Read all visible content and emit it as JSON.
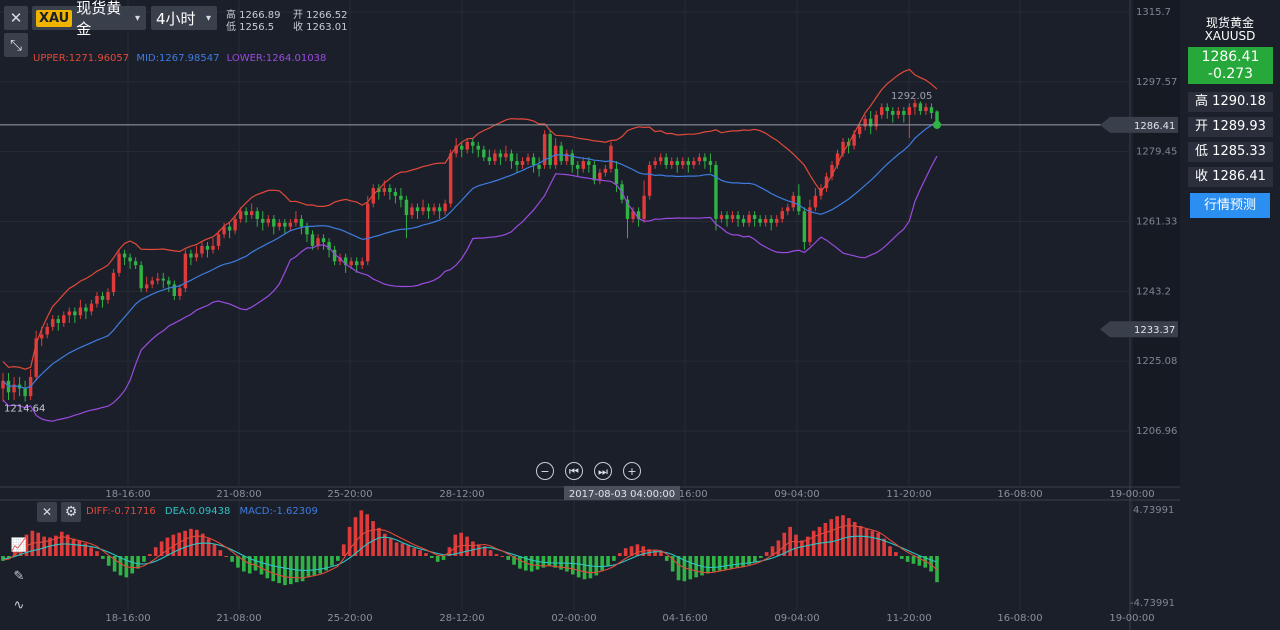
{
  "toolbar": {
    "close_label": "✕",
    "collapse_label": "⤡",
    "symbol_tag": "XAU",
    "symbol_name": "现货黄金",
    "period": "4小时",
    "caret": "▾"
  },
  "ohlc_header": {
    "high": "高 1266.89",
    "low": "低 1256.5",
    "open": "开 1266.52",
    "close": "收 1263.01"
  },
  "boll_legend": {
    "upper": "UPPER:1271.96057",
    "mid": "MID:1267.98547",
    "lower": "LOWER:1264.01038"
  },
  "macd_legend": {
    "diff": "DIFF:-0.71716",
    "dea": "DEA:0.09438",
    "macd": "MACD:-1.62309"
  },
  "right_panel": {
    "name": "现货黄金",
    "code": "XAUUSD",
    "price": "1286.41",
    "change": "-0.273",
    "high": "高 1290.18",
    "open": "开 1289.93",
    "low": "低 1285.33",
    "close": "收 1286.41",
    "forecast": "行情预测"
  },
  "nav_buttons": [
    "−",
    "⏮",
    "⏭",
    "+"
  ],
  "colors": {
    "up": "#e03b3b",
    "down": "#2fb344",
    "upper": "#e04a3a",
    "mid": "#3e7ce0",
    "lower": "#9a4be0",
    "dea": "#2ec4c4",
    "diff": "#e04a3a",
    "background": "#1b1f29",
    "grid": "#262b36",
    "accent_green": "#26a83a",
    "accent_blue": "#2a8ff0"
  },
  "chart_data": [
    {
      "type": "candlestick",
      "price_ticks": [
        "1315.7",
        "1297.57",
        "1279.45",
        "1261.33",
        "1243.2",
        "1225.08",
        "1206.96"
      ],
      "price_tick_values": [
        1315.7,
        1297.57,
        1279.45,
        1261.33,
        1243.2,
        1225.08,
        1206.96
      ],
      "x_ticks": [
        "18-16:00",
        "21-08:00",
        "25-20:00",
        "28-12:00",
        "02-00:00",
        "04-16:00",
        "09-04:00",
        "11-20:00",
        "16-08:00",
        "19-00:00"
      ],
      "current_price_label": "1286.41",
      "current_price": 1286.41,
      "marker_price_label": "1233.37",
      "marker_price": 1233.37,
      "high_annotation": "1292.05",
      "high_value": 1292.05,
      "low_annotation": "1214.64",
      "low_value": 1214.64,
      "crosshair_time": "2017-08-03 04:00:00",
      "candles": [
        [
          1218,
          1220,
          1214.6,
          1222
        ],
        [
          1220,
          1217,
          1215,
          1222
        ],
        [
          1217,
          1219,
          1215,
          1221
        ],
        [
          1219,
          1218,
          1216,
          1221
        ],
        [
          1218,
          1216,
          1214.6,
          1220
        ],
        [
          1216,
          1221,
          1215,
          1223
        ],
        [
          1221,
          1231,
          1220,
          1233
        ],
        [
          1231,
          1232,
          1229,
          1234
        ],
        [
          1232,
          1234,
          1231,
          1235
        ],
        [
          1234,
          1236,
          1233,
          1237
        ],
        [
          1236,
          1235,
          1233,
          1237
        ],
        [
          1235,
          1237,
          1234,
          1238
        ],
        [
          1237,
          1238,
          1235,
          1239
        ],
        [
          1238,
          1237,
          1235,
          1239
        ],
        [
          1237,
          1239,
          1236,
          1241
        ],
        [
          1239,
          1238,
          1236,
          1240
        ],
        [
          1238,
          1240,
          1237,
          1241
        ],
        [
          1240,
          1242,
          1239,
          1243
        ],
        [
          1242,
          1241,
          1239,
          1243
        ],
        [
          1241,
          1243,
          1240,
          1244
        ],
        [
          1243,
          1248,
          1242,
          1249
        ],
        [
          1248,
          1253,
          1247,
          1254
        ],
        [
          1253,
          1252,
          1250,
          1254
        ],
        [
          1252,
          1251,
          1249,
          1253
        ],
        [
          1251,
          1250,
          1249,
          1252
        ],
        [
          1250,
          1244,
          1243,
          1251
        ],
        [
          1244,
          1245,
          1243,
          1247
        ],
        [
          1245,
          1246,
          1244,
          1247
        ],
        [
          1246,
          1246.5,
          1245,
          1248
        ],
        [
          1246.5,
          1246,
          1244,
          1248
        ],
        [
          1246,
          1245,
          1243,
          1247
        ],
        [
          1245,
          1242,
          1241,
          1246
        ],
        [
          1242,
          1244,
          1241,
          1245
        ],
        [
          1244,
          1253,
          1243,
          1254
        ],
        [
          1253,
          1252,
          1250,
          1254
        ],
        [
          1252,
          1253,
          1251,
          1255
        ],
        [
          1253,
          1255,
          1252,
          1256
        ],
        [
          1255,
          1254,
          1252,
          1256
        ],
        [
          1254,
          1255,
          1253,
          1257
        ],
        [
          1255,
          1258,
          1254,
          1259
        ],
        [
          1258,
          1260,
          1257,
          1261
        ],
        [
          1260,
          1259,
          1257,
          1261
        ],
        [
          1259,
          1262,
          1258,
          1263
        ],
        [
          1262,
          1264,
          1261,
          1265
        ],
        [
          1264,
          1263,
          1261,
          1265
        ],
        [
          1263,
          1264,
          1262,
          1266
        ],
        [
          1264,
          1262,
          1260,
          1265
        ],
        [
          1262,
          1261,
          1259,
          1264
        ],
        [
          1261,
          1262,
          1260,
          1263
        ],
        [
          1262,
          1260,
          1258,
          1263
        ],
        [
          1260,
          1261,
          1259,
          1262
        ],
        [
          1261,
          1260,
          1258,
          1262
        ],
        [
          1260,
          1261,
          1259,
          1262
        ],
        [
          1261,
          1262,
          1260,
          1264
        ],
        [
          1262,
          1260,
          1258,
          1263
        ],
        [
          1260,
          1258,
          1256,
          1261
        ],
        [
          1258,
          1255,
          1254,
          1259
        ],
        [
          1255,
          1257,
          1254,
          1258
        ],
        [
          1257,
          1256,
          1254,
          1258
        ],
        [
          1256,
          1254,
          1252,
          1257
        ],
        [
          1254,
          1251,
          1250,
          1255
        ],
        [
          1251,
          1252,
          1250,
          1253
        ],
        [
          1252,
          1250,
          1248,
          1253
        ],
        [
          1250,
          1251,
          1249,
          1252
        ],
        [
          1251,
          1250,
          1248,
          1252
        ],
        [
          1250,
          1251,
          1249,
          1252
        ],
        [
          1251,
          1266,
          1250,
          1268
        ],
        [
          1266,
          1270,
          1265,
          1271
        ],
        [
          1270,
          1269,
          1267,
          1271
        ],
        [
          1269,
          1270,
          1268,
          1272
        ],
        [
          1270,
          1269,
          1267,
          1271
        ],
        [
          1269,
          1268,
          1266,
          1270
        ],
        [
          1268,
          1267,
          1265,
          1270
        ],
        [
          1267,
          1263,
          1257,
          1268
        ],
        [
          1263,
          1265,
          1262,
          1266
        ],
        [
          1265,
          1264,
          1262,
          1266
        ],
        [
          1264,
          1265,
          1263,
          1267
        ],
        [
          1265,
          1264,
          1262,
          1266
        ],
        [
          1264,
          1265,
          1263,
          1266
        ],
        [
          1265,
          1264,
          1262,
          1266
        ],
        [
          1264,
          1266,
          1263,
          1267
        ],
        [
          1266,
          1279,
          1265,
          1280
        ],
        [
          1279,
          1281,
          1278,
          1283
        ],
        [
          1281,
          1280,
          1278,
          1282
        ],
        [
          1280,
          1282,
          1279,
          1283
        ],
        [
          1282,
          1281,
          1279,
          1283
        ],
        [
          1281,
          1280,
          1278,
          1282
        ],
        [
          1280,
          1278,
          1277,
          1281
        ],
        [
          1278,
          1277,
          1276,
          1280
        ],
        [
          1277,
          1279,
          1276,
          1280
        ],
        [
          1279,
          1278,
          1276,
          1280
        ],
        [
          1278,
          1279,
          1277,
          1281
        ],
        [
          1279,
          1277,
          1275,
          1280
        ],
        [
          1277,
          1276,
          1274,
          1279
        ],
        [
          1276,
          1277,
          1275,
          1278
        ],
        [
          1277,
          1278,
          1276,
          1279
        ],
        [
          1278,
          1276,
          1274,
          1279
        ],
        [
          1276,
          1275,
          1273,
          1278
        ],
        [
          1276,
          1284,
          1275,
          1285
        ],
        [
          1284,
          1276,
          1275,
          1285
        ],
        [
          1276,
          1281,
          1275,
          1283
        ],
        [
          1281,
          1277,
          1276,
          1282
        ],
        [
          1277,
          1279,
          1276,
          1280
        ],
        [
          1279,
          1276,
          1274,
          1280
        ],
        [
          1276,
          1275,
          1273,
          1277
        ],
        [
          1275,
          1277,
          1274,
          1278
        ],
        [
          1277,
          1276,
          1274,
          1278
        ],
        [
          1276,
          1272,
          1271,
          1277
        ],
        [
          1272,
          1274,
          1271,
          1275
        ],
        [
          1274,
          1275,
          1273,
          1276
        ],
        [
          1275,
          1281,
          1274,
          1282
        ],
        [
          1275,
          1271,
          1269,
          1277
        ],
        [
          1271,
          1267,
          1266,
          1272
        ],
        [
          1267,
          1262,
          1257,
          1268
        ],
        [
          1262,
          1264,
          1261,
          1265
        ],
        [
          1264,
          1262,
          1260,
          1265
        ],
        [
          1262,
          1268,
          1261,
          1272
        ],
        [
          1268,
          1276,
          1267,
          1277
        ],
        [
          1276,
          1277,
          1275,
          1278
        ],
        [
          1277,
          1278,
          1276,
          1279
        ],
        [
          1278,
          1276,
          1275,
          1279
        ],
        [
          1276,
          1277,
          1275,
          1278
        ],
        [
          1277,
          1276,
          1274,
          1278
        ],
        [
          1276,
          1277,
          1275,
          1278
        ],
        [
          1277,
          1276,
          1274,
          1278
        ],
        [
          1276,
          1277,
          1275,
          1278
        ],
        [
          1277,
          1278,
          1276,
          1279
        ],
        [
          1278,
          1277,
          1275,
          1279
        ],
        [
          1277,
          1276,
          1274,
          1279
        ],
        [
          1276,
          1262,
          1259,
          1277
        ],
        [
          1262,
          1263,
          1261,
          1264
        ],
        [
          1263,
          1262,
          1260,
          1264
        ],
        [
          1262,
          1263,
          1261,
          1264
        ],
        [
          1263,
          1262,
          1260,
          1264
        ],
        [
          1262,
          1261,
          1260,
          1263
        ],
        [
          1261,
          1263,
          1260,
          1264
        ],
        [
          1263,
          1262,
          1260,
          1264
        ],
        [
          1262,
          1261,
          1260,
          1263
        ],
        [
          1261,
          1262,
          1260,
          1263
        ],
        [
          1262,
          1261,
          1259,
          1263
        ],
        [
          1261,
          1262,
          1260,
          1263
        ],
        [
          1262,
          1264,
          1261,
          1265
        ],
        [
          1264,
          1265,
          1263,
          1266
        ],
        [
          1265,
          1268,
          1264,
          1269
        ],
        [
          1268,
          1264,
          1263,
          1271
        ],
        [
          1264,
          1256,
          1254,
          1265
        ],
        [
          1256,
          1265,
          1255,
          1267
        ],
        [
          1265,
          1268,
          1264,
          1270
        ],
        [
          1268,
          1270,
          1267,
          1271
        ],
        [
          1270,
          1273,
          1269,
          1274
        ],
        [
          1273,
          1276,
          1272,
          1277
        ],
        [
          1276,
          1279,
          1275,
          1280
        ],
        [
          1279,
          1282,
          1278,
          1283
        ],
        [
          1282,
          1281,
          1279,
          1283
        ],
        [
          1281,
          1284,
          1280,
          1285
        ],
        [
          1284,
          1286,
          1283,
          1287
        ],
        [
          1286,
          1288,
          1285,
          1289
        ],
        [
          1288,
          1286,
          1284,
          1290
        ],
        [
          1286,
          1289,
          1285,
          1290
        ],
        [
          1289,
          1291,
          1288,
          1292
        ],
        [
          1291,
          1290,
          1288,
          1292
        ],
        [
          1290,
          1289,
          1287,
          1291
        ],
        [
          1289,
          1290,
          1288,
          1291
        ],
        [
          1290,
          1289,
          1287,
          1291
        ],
        [
          1289,
          1291,
          1283,
          1292
        ],
        [
          1291,
          1292.05,
          1289,
          1293
        ],
        [
          1292,
          1290,
          1289,
          1292.5
        ],
        [
          1290,
          1291,
          1289,
          1292
        ],
        [
          1291,
          1289.5,
          1288,
          1292
        ],
        [
          1289.9,
          1286.4,
          1285.3,
          1290.2
        ]
      ]
    },
    {
      "type": "bar",
      "name": "MACD",
      "y_ticks": [
        "4.73991",
        "-4.73991"
      ],
      "ylim": [
        -4.73991,
        4.73991
      ],
      "x_ticks": [
        "18-16:00",
        "21-08:00",
        "25-20:00",
        "28-12:00",
        "02-00:00",
        "04-16:00",
        "09-04:00",
        "11-20:00",
        "16-08:00",
        "19-00:00"
      ],
      "values": [
        -0.5,
        -0.3,
        0.5,
        1.5,
        2.2,
        2.6,
        2.4,
        2.0,
        1.9,
        2.1,
        2.5,
        2.2,
        1.8,
        1.6,
        1.3,
        0.9,
        0.5,
        -0.3,
        -1.0,
        -1.6,
        -2.0,
        -2.2,
        -1.8,
        -1.3,
        -0.6,
        0.2,
        0.9,
        1.5,
        1.9,
        2.2,
        2.4,
        2.6,
        2.8,
        2.7,
        2.3,
        1.8,
        1.2,
        0.6,
        0.0,
        -0.6,
        -1.2,
        -1.6,
        -1.8,
        -1.5,
        -1.9,
        -2.3,
        -2.6,
        -2.8,
        -3.0,
        -2.9,
        -2.7,
        -2.6,
        -2.2,
        -2.0,
        -1.8,
        -1.5,
        -1.0,
        -0.5,
        1.2,
        3.0,
        4.0,
        4.7,
        4.3,
        3.6,
        2.9,
        2.3,
        1.8,
        1.4,
        1.3,
        1.1,
        0.8,
        0.6,
        0.3,
        -0.2,
        -0.6,
        -0.4,
        0.9,
        2.2,
        2.4,
        2.0,
        1.5,
        1.2,
        1.0,
        0.6,
        0.2,
        0.0,
        -0.4,
        -0.9,
        -1.3,
        -1.5,
        -1.6,
        -1.4,
        -1.2,
        -1.0,
        -1.2,
        -1.4,
        -1.6,
        -1.9,
        -2.2,
        -2.4,
        -2.3,
        -2.0,
        -1.5,
        -1.0,
        -0.5,
        0.3,
        0.8,
        1.0,
        1.2,
        1.0,
        0.7,
        0.6,
        0.4,
        -0.5,
        -1.6,
        -2.5,
        -2.6,
        -2.4,
        -2.2,
        -2.0,
        -1.8,
        -1.6,
        -1.5,
        -1.4,
        -1.3,
        -1.2,
        -1.1,
        -0.9,
        -0.6,
        -0.2,
        0.4,
        1.0,
        1.6,
        2.4,
        3.0,
        2.2,
        1.6,
        2.0,
        2.6,
        3.0,
        3.4,
        3.8,
        4.1,
        4.2,
        3.9,
        3.5,
        3.1,
        2.8,
        2.6,
        2.4,
        1.8,
        1.0,
        0.4,
        -0.3,
        -0.6,
        -0.8,
        -1.0,
        -1.2,
        -1.6,
        -2.7
      ],
      "legend": [
        "DIFF",
        "DEA",
        "MACD"
      ]
    }
  ]
}
